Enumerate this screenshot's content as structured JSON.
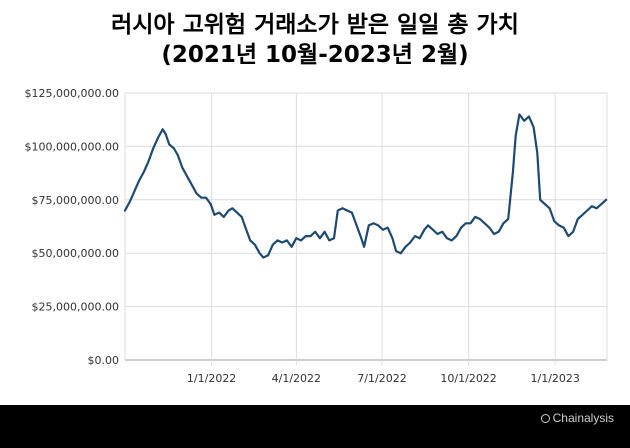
{
  "title_line1": "러시아 고위험 거래소가 받은 일일 총 가치",
  "title_line2": "(2021년 10월-2023년 2월)",
  "brand": "Chainalysis",
  "brand_icon": "chainalysis-logo-icon",
  "colors": {
    "line": "#1e4a72",
    "grid": "#dcdcdc",
    "axis": "#999999"
  },
  "chart_data": {
    "type": "line",
    "title": "러시아 고위험 거래소가 받은 일일 총 가치 (2021년 10월-2023년 2월)",
    "xlabel": "",
    "ylabel": "",
    "ylim": [
      0,
      125000000
    ],
    "yticks": [
      0,
      25000000,
      50000000,
      75000000,
      100000000,
      125000000
    ],
    "ytick_labels": [
      "$0.00",
      "$25,000,000.00",
      "$50,000,000.00",
      "$75,000,000.00",
      "$100,000,000.00",
      "$125,000,000.00"
    ],
    "xlim": [
      "2021-10-01",
      "2023-02-25"
    ],
    "xticks": [
      "2022-01-01",
      "2022-04-01",
      "2022-07-01",
      "2022-10-01",
      "2023-01-01"
    ],
    "xtick_labels": [
      "1/1/2022",
      "4/1/2022",
      "7/1/2022",
      "10/1/2022",
      "1/1/2023"
    ],
    "grid": true,
    "series": [
      {
        "values": [
          [
            "2021-10-01",
            70000000
          ],
          [
            "2021-10-06",
            74000000
          ],
          [
            "2021-10-11",
            79000000
          ],
          [
            "2021-10-16",
            84000000
          ],
          [
            "2021-10-21",
            88000000
          ],
          [
            "2021-10-26",
            93000000
          ],
          [
            "2021-10-31",
            99000000
          ],
          [
            "2021-11-05",
            104000000
          ],
          [
            "2021-11-10",
            108000000
          ],
          [
            "2021-11-13",
            106000000
          ],
          [
            "2021-11-17",
            101000000
          ],
          [
            "2021-11-22",
            99000000
          ],
          [
            "2021-11-26",
            96000000
          ],
          [
            "2021-12-01",
            90000000
          ],
          [
            "2021-12-06",
            86000000
          ],
          [
            "2021-12-11",
            82000000
          ],
          [
            "2021-12-16",
            78000000
          ],
          [
            "2021-12-21",
            76000000
          ],
          [
            "2021-12-26",
            76000000
          ],
          [
            "2021-12-31",
            73000000
          ],
          [
            "2022-01-04",
            68000000
          ],
          [
            "2022-01-09",
            69000000
          ],
          [
            "2022-01-14",
            67000000
          ],
          [
            "2022-01-19",
            70000000
          ],
          [
            "2022-01-23",
            71000000
          ],
          [
            "2022-01-28",
            69000000
          ],
          [
            "2022-02-02",
            67000000
          ],
          [
            "2022-02-06",
            62000000
          ],
          [
            "2022-02-11",
            56000000
          ],
          [
            "2022-02-16",
            54000000
          ],
          [
            "2022-02-21",
            50000000
          ],
          [
            "2022-02-25",
            48000000
          ],
          [
            "2022-03-02",
            49000000
          ],
          [
            "2022-03-07",
            54000000
          ],
          [
            "2022-03-12",
            56000000
          ],
          [
            "2022-03-17",
            55000000
          ],
          [
            "2022-03-22",
            56000000
          ],
          [
            "2022-03-27",
            53000000
          ],
          [
            "2022-04-01",
            57000000
          ],
          [
            "2022-04-06",
            56000000
          ],
          [
            "2022-04-11",
            58000000
          ],
          [
            "2022-04-16",
            58000000
          ],
          [
            "2022-04-21",
            60000000
          ],
          [
            "2022-04-26",
            57000000
          ],
          [
            "2022-05-01",
            60000000
          ],
          [
            "2022-05-06",
            56000000
          ],
          [
            "2022-05-11",
            57000000
          ],
          [
            "2022-05-15",
            70000000
          ],
          [
            "2022-05-20",
            71000000
          ],
          [
            "2022-05-25",
            70000000
          ],
          [
            "2022-05-30",
            69000000
          ],
          [
            "2022-06-04",
            63000000
          ],
          [
            "2022-06-09",
            57000000
          ],
          [
            "2022-06-12",
            53000000
          ],
          [
            "2022-06-17",
            63000000
          ],
          [
            "2022-06-22",
            64000000
          ],
          [
            "2022-06-27",
            63000000
          ],
          [
            "2022-07-02",
            61000000
          ],
          [
            "2022-07-07",
            62000000
          ],
          [
            "2022-07-12",
            57000000
          ],
          [
            "2022-07-16",
            51000000
          ],
          [
            "2022-07-21",
            50000000
          ],
          [
            "2022-07-26",
            53000000
          ],
          [
            "2022-07-31",
            55000000
          ],
          [
            "2022-08-05",
            58000000
          ],
          [
            "2022-08-10",
            57000000
          ],
          [
            "2022-08-15",
            61000000
          ],
          [
            "2022-08-19",
            63000000
          ],
          [
            "2022-08-24",
            61000000
          ],
          [
            "2022-08-29",
            59000000
          ],
          [
            "2022-09-03",
            60000000
          ],
          [
            "2022-09-08",
            57000000
          ],
          [
            "2022-09-13",
            56000000
          ],
          [
            "2022-09-18",
            58000000
          ],
          [
            "2022-09-23",
            62000000
          ],
          [
            "2022-09-28",
            64000000
          ],
          [
            "2022-10-03",
            64000000
          ],
          [
            "2022-10-08",
            67000000
          ],
          [
            "2022-10-13",
            66000000
          ],
          [
            "2022-10-18",
            64000000
          ],
          [
            "2022-10-23",
            62000000
          ],
          [
            "2022-10-28",
            59000000
          ],
          [
            "2022-11-02",
            60000000
          ],
          [
            "2022-11-07",
            64000000
          ],
          [
            "2022-11-12",
            66000000
          ],
          [
            "2022-11-17",
            88000000
          ],
          [
            "2022-11-20",
            105000000
          ],
          [
            "2022-11-24",
            115000000
          ],
          [
            "2022-11-29",
            112000000
          ],
          [
            "2022-12-04",
            114000000
          ],
          [
            "2022-12-09",
            109000000
          ],
          [
            "2022-12-13",
            97000000
          ],
          [
            "2022-12-16",
            75000000
          ],
          [
            "2022-12-21",
            73000000
          ],
          [
            "2022-12-26",
            71000000
          ],
          [
            "2022-12-31",
            65000000
          ],
          [
            "2023-01-05",
            63000000
          ],
          [
            "2023-01-10",
            62000000
          ],
          [
            "2023-01-15",
            58000000
          ],
          [
            "2023-01-20",
            60000000
          ],
          [
            "2023-01-25",
            66000000
          ],
          [
            "2023-01-30",
            68000000
          ],
          [
            "2023-02-04",
            70000000
          ],
          [
            "2023-02-09",
            72000000
          ],
          [
            "2023-02-14",
            71000000
          ],
          [
            "2023-02-19",
            73000000
          ],
          [
            "2023-02-24",
            75000000
          ]
        ]
      }
    ]
  }
}
